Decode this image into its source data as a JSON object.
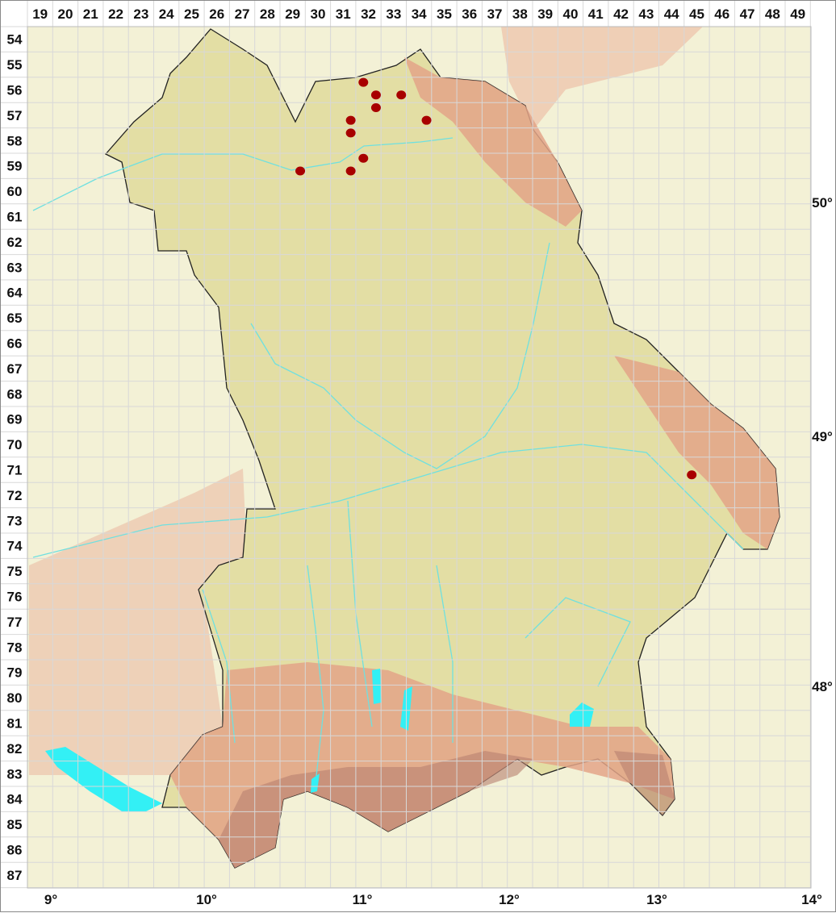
{
  "map": {
    "grid_columns": [
      "19",
      "20",
      "21",
      "22",
      "23",
      "24",
      "25",
      "26",
      "27",
      "28",
      "29",
      "30",
      "31",
      "32",
      "33",
      "34",
      "35",
      "36",
      "37",
      "38",
      "39",
      "40",
      "41",
      "42",
      "43",
      "44",
      "45",
      "46",
      "47",
      "48",
      "49"
    ],
    "grid_rows": [
      "54",
      "55",
      "56",
      "57",
      "58",
      "59",
      "60",
      "61",
      "62",
      "63",
      "64",
      "65",
      "66",
      "67",
      "68",
      "69",
      "70",
      "71",
      "72",
      "73",
      "74",
      "75",
      "76",
      "77",
      "78",
      "79",
      "80",
      "81",
      "82",
      "83",
      "84",
      "85",
      "86",
      "87"
    ],
    "longitude_labels": [
      "9°",
      "10°",
      "11°",
      "12°",
      "13°",
      "14°"
    ],
    "latitude_labels": [
      "50°",
      "49°",
      "48°"
    ],
    "colors": {
      "outside": "#f3f1d6",
      "lowland": "#e3dea4",
      "upland": "#e8a98c",
      "alps": "#d99a80",
      "water": "#33f0f5",
      "rivers": "#6fe0e0",
      "occurrence": "#a80000",
      "grid": "#d8d8d8"
    },
    "occurrences": [
      {
        "col": 32.3,
        "row": 56.2
      },
      {
        "col": 32.8,
        "row": 56.7
      },
      {
        "col": 33.8,
        "row": 56.7
      },
      {
        "col": 32.8,
        "row": 57.2
      },
      {
        "col": 31.8,
        "row": 57.7
      },
      {
        "col": 34.8,
        "row": 57.7
      },
      {
        "col": 31.8,
        "row": 58.2
      },
      {
        "col": 32.3,
        "row": 59.2
      },
      {
        "col": 29.8,
        "row": 59.7
      },
      {
        "col": 31.8,
        "row": 59.7
      },
      {
        "col": 45.3,
        "row": 71.7
      }
    ]
  }
}
